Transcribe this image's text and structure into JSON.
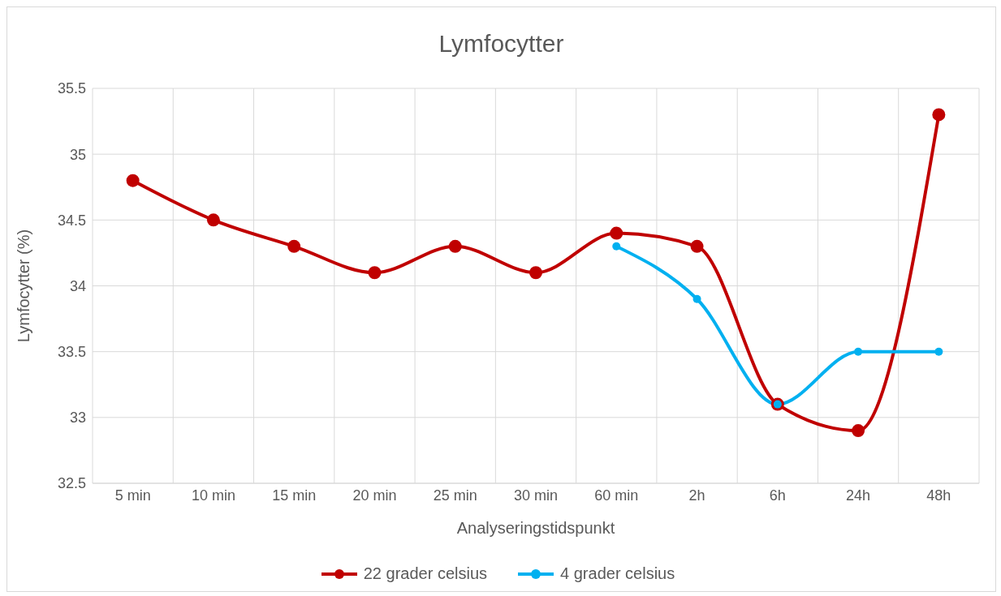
{
  "chart_data": {
    "type": "line",
    "title": "Lymfocytter",
    "xlabel": "Analyseringstidspunkt",
    "ylabel": "Lymfocytter (%)",
    "categories": [
      "5 min",
      "10 min",
      "15 min",
      "20 min",
      "25 min",
      "30 min",
      "60 min",
      "2h",
      "6h",
      "24h",
      "48h"
    ],
    "series": [
      {
        "name": "22 grader celsius",
        "color": "#c00000",
        "values": [
          34.8,
          34.5,
          34.3,
          34.1,
          34.3,
          34.1,
          34.4,
          34.3,
          33.1,
          32.9,
          35.3
        ]
      },
      {
        "name": "4 grader celsius",
        "color": "#00b0f0",
        "values": [
          null,
          null,
          null,
          null,
          null,
          null,
          34.3,
          33.9,
          33.1,
          33.5,
          33.5
        ]
      }
    ],
    "ylim": [
      32.5,
      35.5
    ],
    "yticks": [
      32.5,
      33,
      33.5,
      34,
      34.5,
      35,
      35.5
    ],
    "grid": true,
    "legend": "bottom",
    "marker": "circle",
    "line_style": "solid"
  }
}
